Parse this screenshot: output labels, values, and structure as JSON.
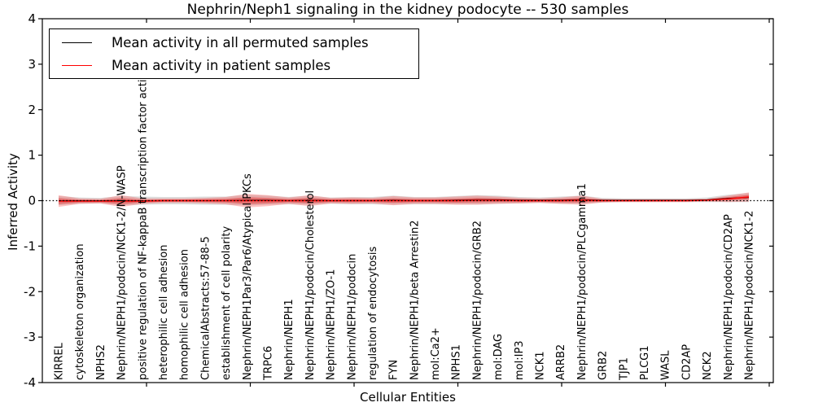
{
  "chart_data": {
    "type": "line",
    "title": "Nephrin/Neph1 signaling in the kidney podocyte -- 530 samples",
    "xlabel": "Cellular Entities",
    "ylabel": "Inferred Activity",
    "ylim": [
      -4,
      4
    ],
    "yticks": [
      4,
      3,
      2,
      1,
      0,
      -1,
      -2,
      -3,
      -4
    ],
    "grid": false,
    "legend_position": "upper left",
    "zero_line": "dotted black at y=0",
    "categories": [
      "KIRREL",
      "cytoskeleton organization",
      "NPHS2",
      "Nephrin/NEPH1/podocin/NCK1-2/N-WASP",
      "positive regulation of NF-kappaB transcription factor activity",
      "heterophilic cell adhesion",
      "homophilic cell adhesion",
      "ChemicalAbstracts:57-88-5",
      "establishment of cell polarity",
      "Nephrin/NEPH1Par3/Par6/Atypical PKCs",
      "TRPC6",
      "Nephrin/NEPH1",
      "Nephrin/NEPH1/podocin/Cholesterol",
      "Nephrin/NEPH1/ZO-1",
      "Nephrin/NEPH1/podocin",
      "regulation of endocytosis",
      "FYN",
      "Nephrin/NEPH1/beta Arrestin2",
      "mol:Ca2+",
      "NPHS1",
      "Nephrin/NEPH1/podocin/GRB2",
      "mol:DAG",
      "mol:IP3",
      "NCK1",
      "ARRB2",
      "Nephrin/NEPH1/podocin/PLCgamma1",
      "GRB2",
      "TJP1",
      "PLCG1",
      "WASL",
      "CD2AP",
      "NCK2",
      "Nephrin/NEPH1/podocin/CD2AP",
      "Nephrin/NEPH1/podocin/NCK1-2"
    ],
    "series": [
      {
        "name": "Mean activity in all permuted samples",
        "color": "#000000",
        "values": [
          0,
          0,
          0,
          0,
          0,
          0,
          0,
          0,
          0,
          0.01,
          0.01,
          0,
          0.01,
          0,
          0,
          0,
          0.01,
          0,
          0,
          0.01,
          0.02,
          0.02,
          0.01,
          0.01,
          0.01,
          0.02,
          0.01,
          0.01,
          0.01,
          0.01,
          0.01,
          0.02,
          0.05,
          0.07
        ]
      },
      {
        "name": "Mean activity in patient samples",
        "color": "#ff0000",
        "values": [
          -0.01,
          -0.01,
          -0.01,
          -0.01,
          -0.01,
          0,
          0,
          0,
          0,
          0,
          0,
          0,
          0,
          0,
          0,
          0,
          0,
          0,
          0,
          0,
          0.01,
          0.01,
          0,
          0,
          0,
          0.01,
          0,
          0,
          0,
          0,
          0,
          0.01,
          0.04,
          0.08
        ]
      }
    ],
    "bands": [
      {
        "name": "permuted-samples-range",
        "color": "rgba(130,130,130,0.28)",
        "center_series": 0,
        "half_widths": [
          0.1,
          0.07,
          0.06,
          0.1,
          0.09,
          0.08,
          0.08,
          0.09,
          0.09,
          0.12,
          0.1,
          0.08,
          0.1,
          0.07,
          0.08,
          0.08,
          0.1,
          0.08,
          0.08,
          0.09,
          0.1,
          0.09,
          0.07,
          0.06,
          0.08,
          0.09,
          0.05,
          0.04,
          0.04,
          0.04,
          0.04,
          0.05,
          0.08,
          0.1
        ]
      },
      {
        "name": "patient-samples-range-outer",
        "color": "rgba(255,60,60,0.30)",
        "center_series": 1,
        "half_widths": [
          0.13,
          0.06,
          0.05,
          0.13,
          0.06,
          0.05,
          0.05,
          0.06,
          0.08,
          0.15,
          0.12,
          0.07,
          0.12,
          0.06,
          0.07,
          0.06,
          0.1,
          0.07,
          0.07,
          0.09,
          0.1,
          0.08,
          0.06,
          0.05,
          0.07,
          0.1,
          0.04,
          0.03,
          0.03,
          0.03,
          0.03,
          0.03,
          0.07,
          0.1
        ]
      },
      {
        "name": "patient-samples-range-inner",
        "color": "rgba(225,40,40,0.45)",
        "center_series": 1,
        "half_widths": [
          0.065,
          0.03,
          0.025,
          0.065,
          0.03,
          0.025,
          0.025,
          0.03,
          0.04,
          0.075,
          0.06,
          0.035,
          0.06,
          0.03,
          0.035,
          0.03,
          0.05,
          0.035,
          0.035,
          0.045,
          0.05,
          0.04,
          0.03,
          0.025,
          0.035,
          0.05,
          0.02,
          0.015,
          0.015,
          0.015,
          0.015,
          0.015,
          0.035,
          0.05
        ]
      }
    ]
  },
  "legend": {
    "items": [
      {
        "label": "Mean activity in all permuted samples",
        "color": "#000000"
      },
      {
        "label": "Mean activity in patient samples",
        "color": "#ff0000"
      }
    ]
  }
}
